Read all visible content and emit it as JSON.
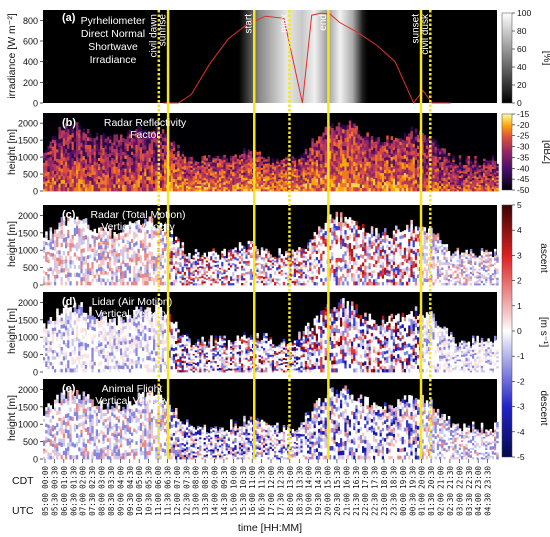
{
  "chart_data": [
    {
      "type": "heatmap",
      "panel": "(a)",
      "title_lines": [
        "Pyrheliometer",
        "Direct Normal",
        "Shortwave",
        "Irradiance"
      ],
      "ylabel": "irradiance [W m⁻²]",
      "ylim": [
        0,
        900
      ],
      "yticks": [
        0,
        200,
        400,
        600,
        800
      ],
      "colorbar_label": "[%]",
      "colorbar_ticks": [
        0,
        20,
        40,
        60,
        80,
        100
      ],
      "line_series": {
        "color": "#e0302a",
        "x_utc_hours": [
          11.5,
          12.3,
          13.0,
          14.0,
          15.0,
          16.0,
          17.0,
          18.0,
          19.0,
          19.5,
          20.0,
          20.5,
          21.0,
          22.0,
          23.0,
          24.0,
          25.0,
          25.5,
          26.0,
          27.0
        ],
        "y": [
          0,
          0,
          80,
          380,
          620,
          760,
          840,
          820,
          0,
          850,
          870,
          860,
          780,
          680,
          560,
          400,
          0,
          120,
          0,
          0
        ]
      }
    },
    {
      "type": "heatmap",
      "panel": "(b)",
      "title_lines": [
        "Radar Reflectivity",
        "Factor"
      ],
      "ylabel": "height [m]",
      "ylim": [
        0,
        2300
      ],
      "yticks": [
        0,
        500,
        1000,
        1500,
        2000
      ],
      "colorbar_label": "[dBZ]",
      "colorbar_ticks": [
        -15,
        -20,
        -25,
        -30,
        -35,
        -40,
        -45,
        -50
      ]
    },
    {
      "type": "heatmap",
      "panel": "(c)",
      "title_lines": [
        "Radar (Total Motion)",
        "Vertical Velocity"
      ],
      "ylabel": "height [m]",
      "ylim": [
        0,
        2300
      ],
      "yticks": [
        0,
        500,
        1000,
        1500,
        2000
      ]
    },
    {
      "type": "heatmap",
      "panel": "(d)",
      "title_lines": [
        "Lidar (Air Motion)",
        "Vertical Velocity"
      ],
      "ylabel": "height [m]",
      "ylim": [
        0,
        2300
      ],
      "yticks": [
        0,
        500,
        1000,
        1500,
        2000
      ]
    },
    {
      "type": "heatmap",
      "panel": "(e)",
      "title_lines": [
        "Animal Flight",
        "Vertical Velocity"
      ],
      "ylabel": "height [m]",
      "ylim": [
        0,
        2300
      ],
      "yticks": [
        0,
        500,
        1000,
        1500,
        2000
      ]
    }
  ],
  "velocity_colorbar": {
    "label": "[m s⁻¹]",
    "ticks": [
      5,
      4,
      3,
      2,
      1,
      0,
      -1,
      -2,
      -3,
      -4,
      -5
    ],
    "ascent_label": "ascent",
    "descent_label": "descent"
  },
  "events": [
    {
      "label": "civil dawn",
      "style": "dotted",
      "x_utc_hours": 11.25
    },
    {
      "label": "sunrise",
      "style": "solid",
      "x_utc_hours": 11.75
    },
    {
      "label": "start",
      "style": "solid",
      "x_utc_hours": 16.4
    },
    {
      "label": "max",
      "style": "dotted",
      "x_utc_hours": 18.3
    },
    {
      "label": "end",
      "style": "solid",
      "x_utc_hours": 20.4
    },
    {
      "label": "sunset",
      "style": "solid",
      "x_utc_hours": 25.4
    },
    {
      "label": "civil dusk",
      "style": "dotted",
      "x_utc_hours": 25.9
    }
  ],
  "xaxis": {
    "cdt_label": "CDT",
    "utc_label": "UTC",
    "xlabel": "time [HH:MM]",
    "x_start_utc_hours": 5.0,
    "x_end_utc_hours": 29.5,
    "cdt_ticks": [
      "00:00",
      "00:30",
      "01:00",
      "01:30",
      "02:00",
      "02:30",
      "03:00",
      "03:30",
      "04:00",
      "04:30",
      "05:00",
      "05:30",
      "06:00",
      "06:30",
      "07:00",
      "07:30",
      "08:00",
      "08:30",
      "09:00",
      "09:30",
      "10:00",
      "10:30",
      "11:00",
      "11:30",
      "12:00",
      "12:30",
      "13:00",
      "13:30",
      "14:00",
      "14:30",
      "15:00",
      "15:30",
      "16:00",
      "16:30",
      "17:00",
      "17:30",
      "18:00",
      "18:30",
      "19:00",
      "19:30",
      "20:00",
      "20:30",
      "21:00",
      "21:30",
      "22:00",
      "22:30",
      "23:00",
      "23:30"
    ],
    "utc_ticks": [
      "05:00",
      "05:30",
      "06:00",
      "06:30",
      "07:00",
      "07:30",
      "08:00",
      "08:30",
      "09:00",
      "09:30",
      "10:00",
      "10:30",
      "11:00",
      "11:30",
      "12:00",
      "12:30",
      "13:00",
      "13:30",
      "14:00",
      "14:30",
      "15:00",
      "15:30",
      "16:00",
      "16:30",
      "17:00",
      "17:30",
      "18:00",
      "18:30",
      "19:00",
      "19:30",
      "20:00",
      "20:30",
      "21:00",
      "21:30",
      "22:00",
      "22:30",
      "23:00",
      "23:30",
      "00:00",
      "00:30",
      "01:00",
      "01:30",
      "02:00",
      "02:30",
      "03:00",
      "03:30",
      "04:00",
      "04:30"
    ]
  },
  "colors": {
    "event_line": "#f5e71a",
    "irradiance_line": "#e0302a"
  }
}
